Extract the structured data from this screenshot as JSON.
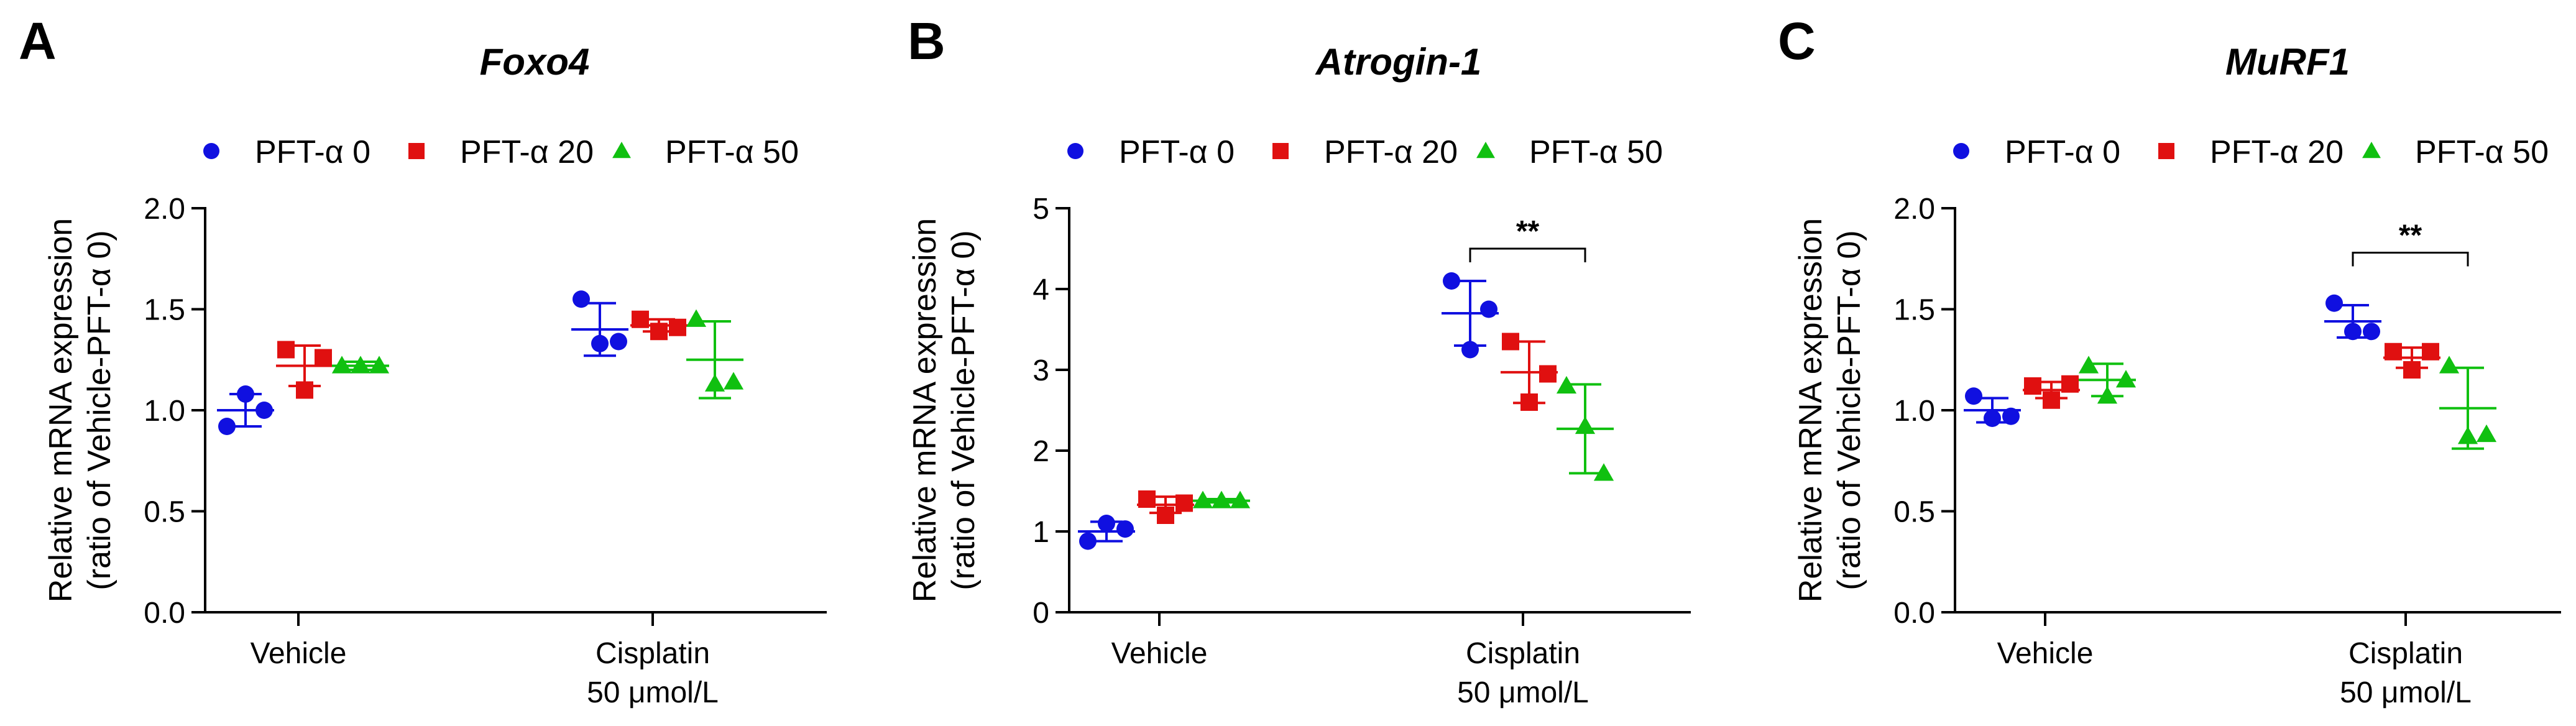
{
  "chart_data": [
    {
      "type": "scatter",
      "panel": "A",
      "title": "Foxo4",
      "ylabel": "Relative mRNA expression",
      "ylabel2": "(ratio of Vehicle-PFT-α 0)",
      "ylim": [
        0,
        2.0
      ],
      "yticks": [
        0,
        0.5,
        1.0,
        1.5,
        2.0
      ],
      "ytick_labels": [
        "0.0",
        "0.5",
        "1.0",
        "1.5",
        "2.0"
      ],
      "categories": [
        "Vehicle",
        "Cisplatin"
      ],
      "category_sublabels": [
        "",
        "50 μmol/L"
      ],
      "legend": [
        "PFT-α 0",
        "PFT-α 20",
        "PFT-α 50"
      ],
      "series": [
        {
          "name": "PFT-α 0",
          "color": "#1010e0",
          "marker": "circle",
          "points": [
            [
              0.92,
              1.08,
              1.0
            ],
            [
              1.55,
              1.33,
              1.34
            ]
          ],
          "mean": [
            1.0,
            1.4
          ],
          "sd": [
            0.08,
            0.13
          ]
        },
        {
          "name": "PFT-α 20",
          "color": "#e01010",
          "marker": "square",
          "points": [
            [
              1.3,
              1.1,
              1.26
            ],
            [
              1.45,
              1.39,
              1.41
            ]
          ],
          "mean": [
            1.22,
            1.42
          ],
          "sd": [
            0.1,
            0.03
          ]
        },
        {
          "name": "PFT-α 50",
          "color": "#10c010",
          "marker": "triangle",
          "points": [
            [
              1.22,
              1.22,
              1.22
            ],
            [
              1.45,
              1.13,
              1.14
            ]
          ],
          "mean": [
            1.22,
            1.25
          ],
          "sd": [
            0.02,
            0.19
          ]
        }
      ],
      "significance": []
    },
    {
      "type": "scatter",
      "panel": "B",
      "title": "Atrogin-1",
      "ylabel": "Relative mRNA expression",
      "ylabel2": "(ratio of Vehicle-PFT-α 0)",
      "ylim": [
        0,
        5
      ],
      "yticks": [
        0,
        1,
        2,
        3,
        4,
        5
      ],
      "ytick_labels": [
        "0",
        "1",
        "2",
        "3",
        "4",
        "5"
      ],
      "categories": [
        "Vehicle",
        "Cisplatin"
      ],
      "category_sublabels": [
        "",
        "50 μmol/L"
      ],
      "legend": [
        "PFT-α 0",
        "PFT-α 20",
        "PFT-α 50"
      ],
      "series": [
        {
          "name": "PFT-α 0",
          "color": "#1010e0",
          "marker": "circle",
          "points": [
            [
              0.88,
              1.1,
              1.03
            ],
            [
              4.1,
              3.25,
              3.75
            ]
          ],
          "mean": [
            1.0,
            3.7
          ],
          "sd": [
            0.12,
            0.4
          ]
        },
        {
          "name": "PFT-α 20",
          "color": "#e01010",
          "marker": "square",
          "points": [
            [
              1.4,
              1.2,
              1.35
            ],
            [
              3.35,
              2.6,
              2.95
            ]
          ],
          "mean": [
            1.33,
            2.97
          ],
          "sd": [
            0.1,
            0.38
          ]
        },
        {
          "name": "PFT-α 50",
          "color": "#10c010",
          "marker": "triangle",
          "points": [
            [
              1.38,
              1.38,
              1.38
            ],
            [
              2.8,
              2.3,
              1.72
            ]
          ],
          "mean": [
            1.38,
            2.27
          ],
          "sd": [
            0.02,
            0.55
          ]
        }
      ],
      "significance": [
        {
          "category": 1,
          "from": 0,
          "to": 2,
          "label": "**",
          "y": 4.5
        }
      ]
    },
    {
      "type": "scatter",
      "panel": "C",
      "title": "MuRF1",
      "ylabel": "Relative mRNA expression",
      "ylabel2": "(ratio of Vehicle-PFT-α 0)",
      "ylim": [
        0,
        2.0
      ],
      "yticks": [
        0,
        0.5,
        1.0,
        1.5,
        2.0
      ],
      "ytick_labels": [
        "0.0",
        "0.5",
        "1.0",
        "1.5",
        "2.0"
      ],
      "categories": [
        "Vehicle",
        "Cisplatin"
      ],
      "category_sublabels": [
        "",
        "50 μmol/L"
      ],
      "legend": [
        "PFT-α 0",
        "PFT-α 20",
        "PFT-α 50"
      ],
      "series": [
        {
          "name": "PFT-α 0",
          "color": "#1010e0",
          "marker": "circle",
          "points": [
            [
              1.07,
              0.96,
              0.97
            ],
            [
              1.53,
              1.39,
              1.39
            ]
          ],
          "mean": [
            1.0,
            1.44
          ],
          "sd": [
            0.06,
            0.08
          ]
        },
        {
          "name": "PFT-α 20",
          "color": "#e01010",
          "marker": "square",
          "points": [
            [
              1.12,
              1.05,
              1.13
            ],
            [
              1.29,
              1.2,
              1.29
            ]
          ],
          "mean": [
            1.1,
            1.26
          ],
          "sd": [
            0.04,
            0.05
          ]
        },
        {
          "name": "PFT-α 50",
          "color": "#10c010",
          "marker": "triangle",
          "points": [
            [
              1.22,
              1.07,
              1.15
            ],
            [
              1.22,
              0.87,
              0.88
            ]
          ],
          "mean": [
            1.15,
            1.01
          ],
          "sd": [
            0.08,
            0.2
          ]
        }
      ],
      "significance": [
        {
          "category": 1,
          "from": 0,
          "to": 2,
          "label": "**",
          "y": 1.78
        }
      ]
    }
  ]
}
